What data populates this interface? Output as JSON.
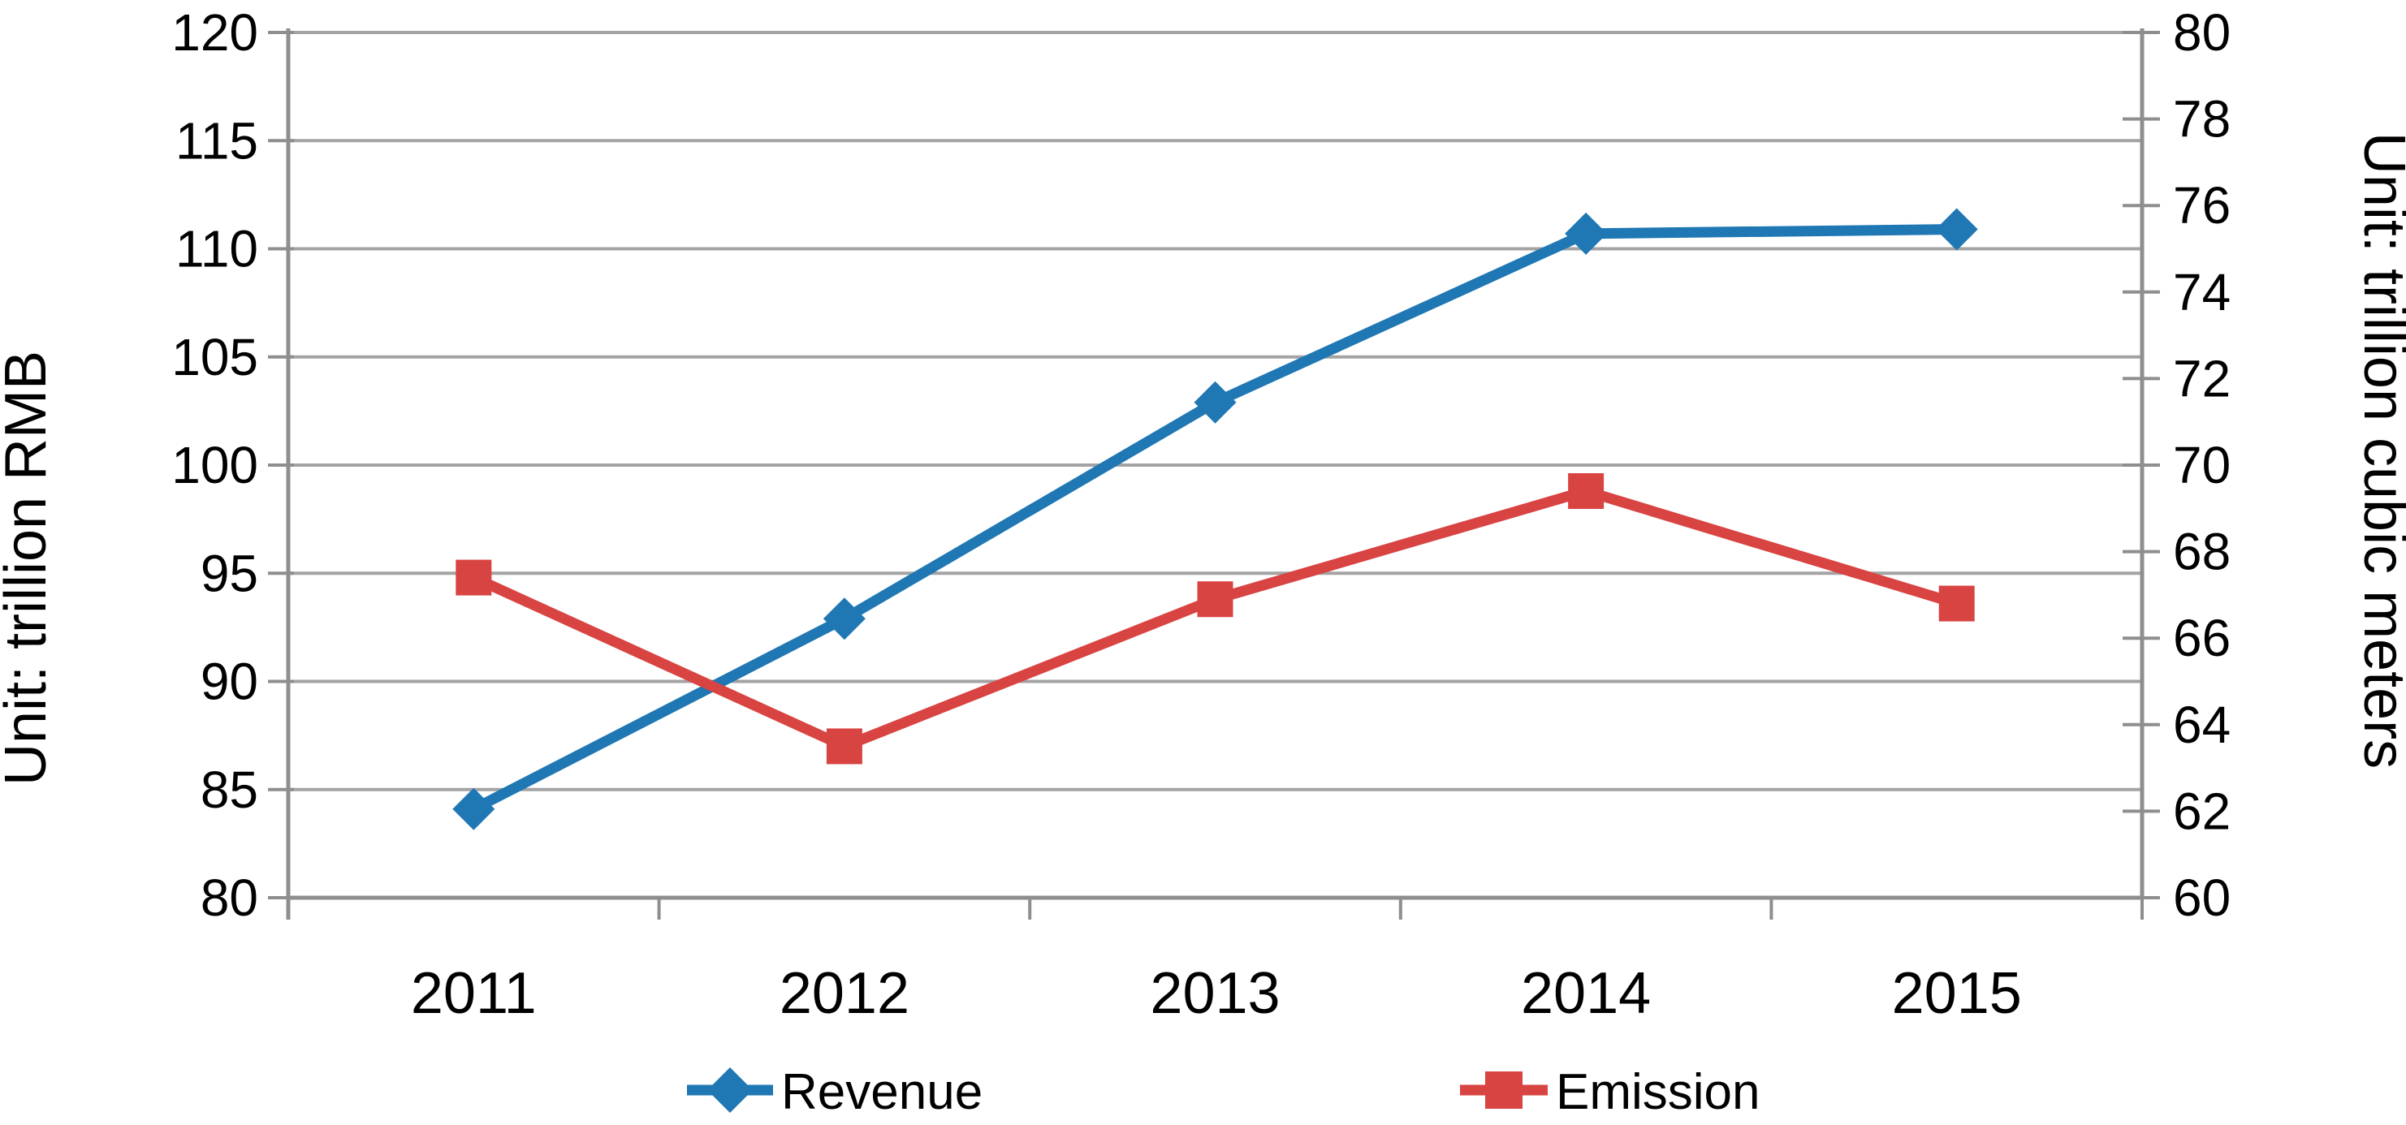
{
  "chart_data": {
    "type": "line",
    "categories": [
      "2011",
      "2012",
      "2013",
      "2014",
      "2015"
    ],
    "series": [
      {
        "name": "Revenue",
        "axis": "left",
        "marker": "diamond",
        "color": "#1f77b4",
        "values": [
          84.1,
          92.9,
          102.9,
          110.7,
          110.9
        ]
      },
      {
        "name": "Emission",
        "axis": "right",
        "marker": "square",
        "color": "#d84442",
        "values": [
          67.4,
          63.5,
          66.9,
          69.4,
          66.8
        ]
      }
    ],
    "left_axis": {
      "title": "Unit: trillion RMB",
      "min": 80,
      "max": 120,
      "ticks": [
        80,
        85,
        90,
        95,
        100,
        105,
        110,
        115,
        120
      ]
    },
    "right_axis": {
      "title": "Unit: trillion cubic meters",
      "min": 60,
      "max": 80,
      "ticks": [
        60,
        62,
        64,
        66,
        68,
        70,
        72,
        74,
        76,
        78,
        80
      ]
    },
    "grid": true,
    "legend_position": "bottom",
    "legend": [
      "Revenue",
      "Emission"
    ]
  },
  "styles": {
    "background": "#ffffff",
    "grid_color": "#a3a3a3",
    "axis_color": "#8e8e8e",
    "text_color": "#000000",
    "revenue_color": "#1f77b4",
    "emission_color": "#d84442"
  }
}
